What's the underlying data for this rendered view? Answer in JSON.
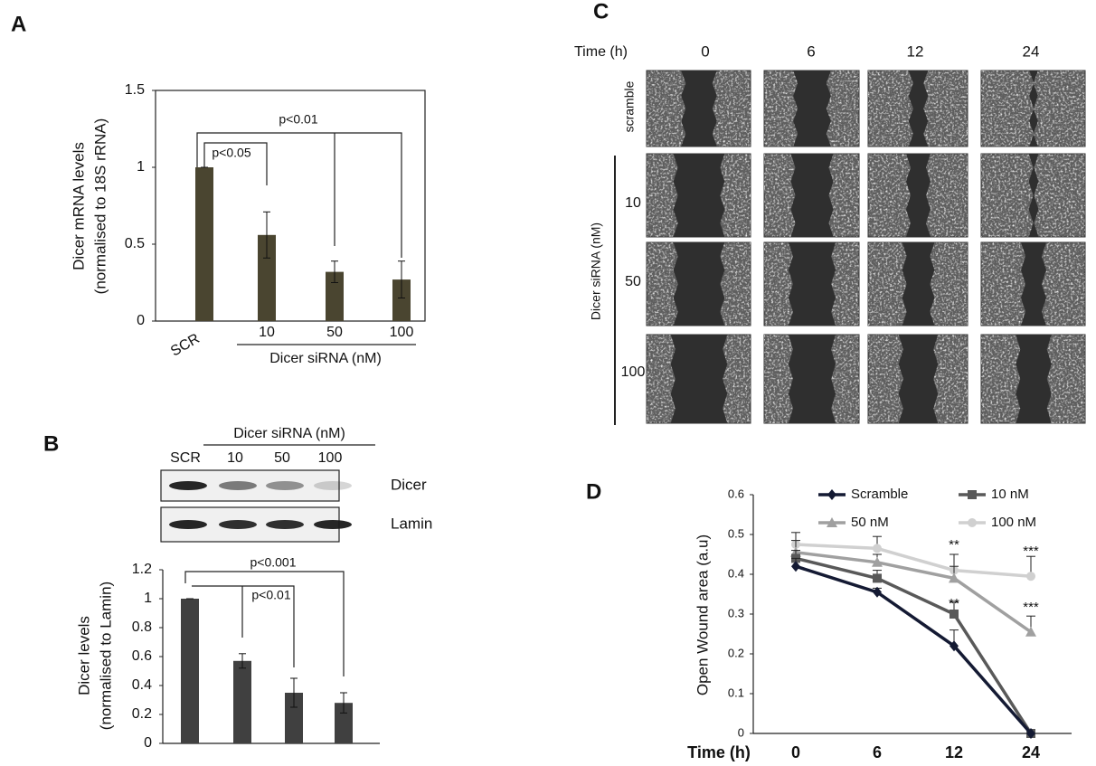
{
  "panels": [
    "A",
    "B",
    "C",
    "D"
  ],
  "chart_data": [
    {
      "type": "bar",
      "ylabel": [
        "Dicer mRNA levels",
        "(normalised to 18S rRNA)"
      ],
      "categories": [
        "SCR",
        "10",
        "50",
        "100"
      ],
      "group_label": "Dicer siRNA (nM)",
      "values": [
        1,
        0.56,
        0.32,
        0.27
      ],
      "errors": [
        0,
        0.15,
        0.07,
        0.12
      ],
      "color": "#4a4530",
      "ylim": [
        0,
        1.5
      ],
      "yticks": [
        0,
        0.5,
        1,
        1.5
      ],
      "annotations": [
        "p<0.05",
        "p<0.01"
      ]
    },
    {
      "type": "bar",
      "ylabel": [
        "Dicer levels",
        "(normalised to Lamin)"
      ],
      "values": [
        1,
        0.57,
        0.35,
        0.28
      ],
      "errors": [
        0,
        0.05,
        0.1,
        0.07
      ],
      "color": "#404040",
      "ylim": [
        0,
        1.2
      ],
      "yticks": [
        0,
        0.2,
        0.4,
        0.6,
        0.8,
        1,
        1.2
      ],
      "annotations": [
        "p<0.001",
        "p<0.01"
      ]
    },
    {
      "type": "line",
      "ylabel": "Open Wound area (a.u)",
      "xlabel": "Time (h)",
      "categories": [
        "0",
        "6",
        "12",
        "24"
      ],
      "series": [
        {
          "name": "Scramble",
          "color": "#141a33",
          "marker": "diamond",
          "values": [
            0.42,
            0.355,
            0.22,
            0
          ],
          "errors": [
            0.02,
            0.01,
            0.04,
            0
          ]
        },
        {
          "name": "10 nM",
          "color": "#595959",
          "marker": "square",
          "values": [
            0.44,
            0.39,
            0.3,
            0
          ],
          "errors": [
            0.02,
            0.02,
            0.03,
            0
          ]
        },
        {
          "name": "50 nM",
          "color": "#a0a0a0",
          "marker": "triangle",
          "values": [
            0.455,
            0.43,
            0.39,
            0.255
          ],
          "errors": [
            0.03,
            0.02,
            0.03,
            0.04
          ]
        },
        {
          "name": "100 nM",
          "color": "#d0d0d0",
          "marker": "circle",
          "values": [
            0.475,
            0.465,
            0.41,
            0.395
          ],
          "errors": [
            0.03,
            0.03,
            0.04,
            0.05
          ]
        }
      ],
      "ylim": [
        0,
        0.6
      ],
      "yticks": [
        0,
        0.1,
        0.2,
        0.3,
        0.4,
        0.5,
        0.6
      ],
      "annotations": [
        "**",
        "***",
        "**",
        "***"
      ]
    }
  ],
  "western_blot": {
    "group_label": "Dicer siRNA (nM)",
    "lanes": [
      "SCR",
      "10",
      "50",
      "100"
    ],
    "bands": [
      "Dicer",
      "Lamin"
    ]
  },
  "scratch_assay": {
    "time_label": "Time (h)",
    "times": [
      "0",
      "6",
      "12",
      "24"
    ],
    "rows": [
      "scramble",
      "10",
      "50",
      "100"
    ],
    "group_label": "Dicer siRNA (nM)"
  }
}
